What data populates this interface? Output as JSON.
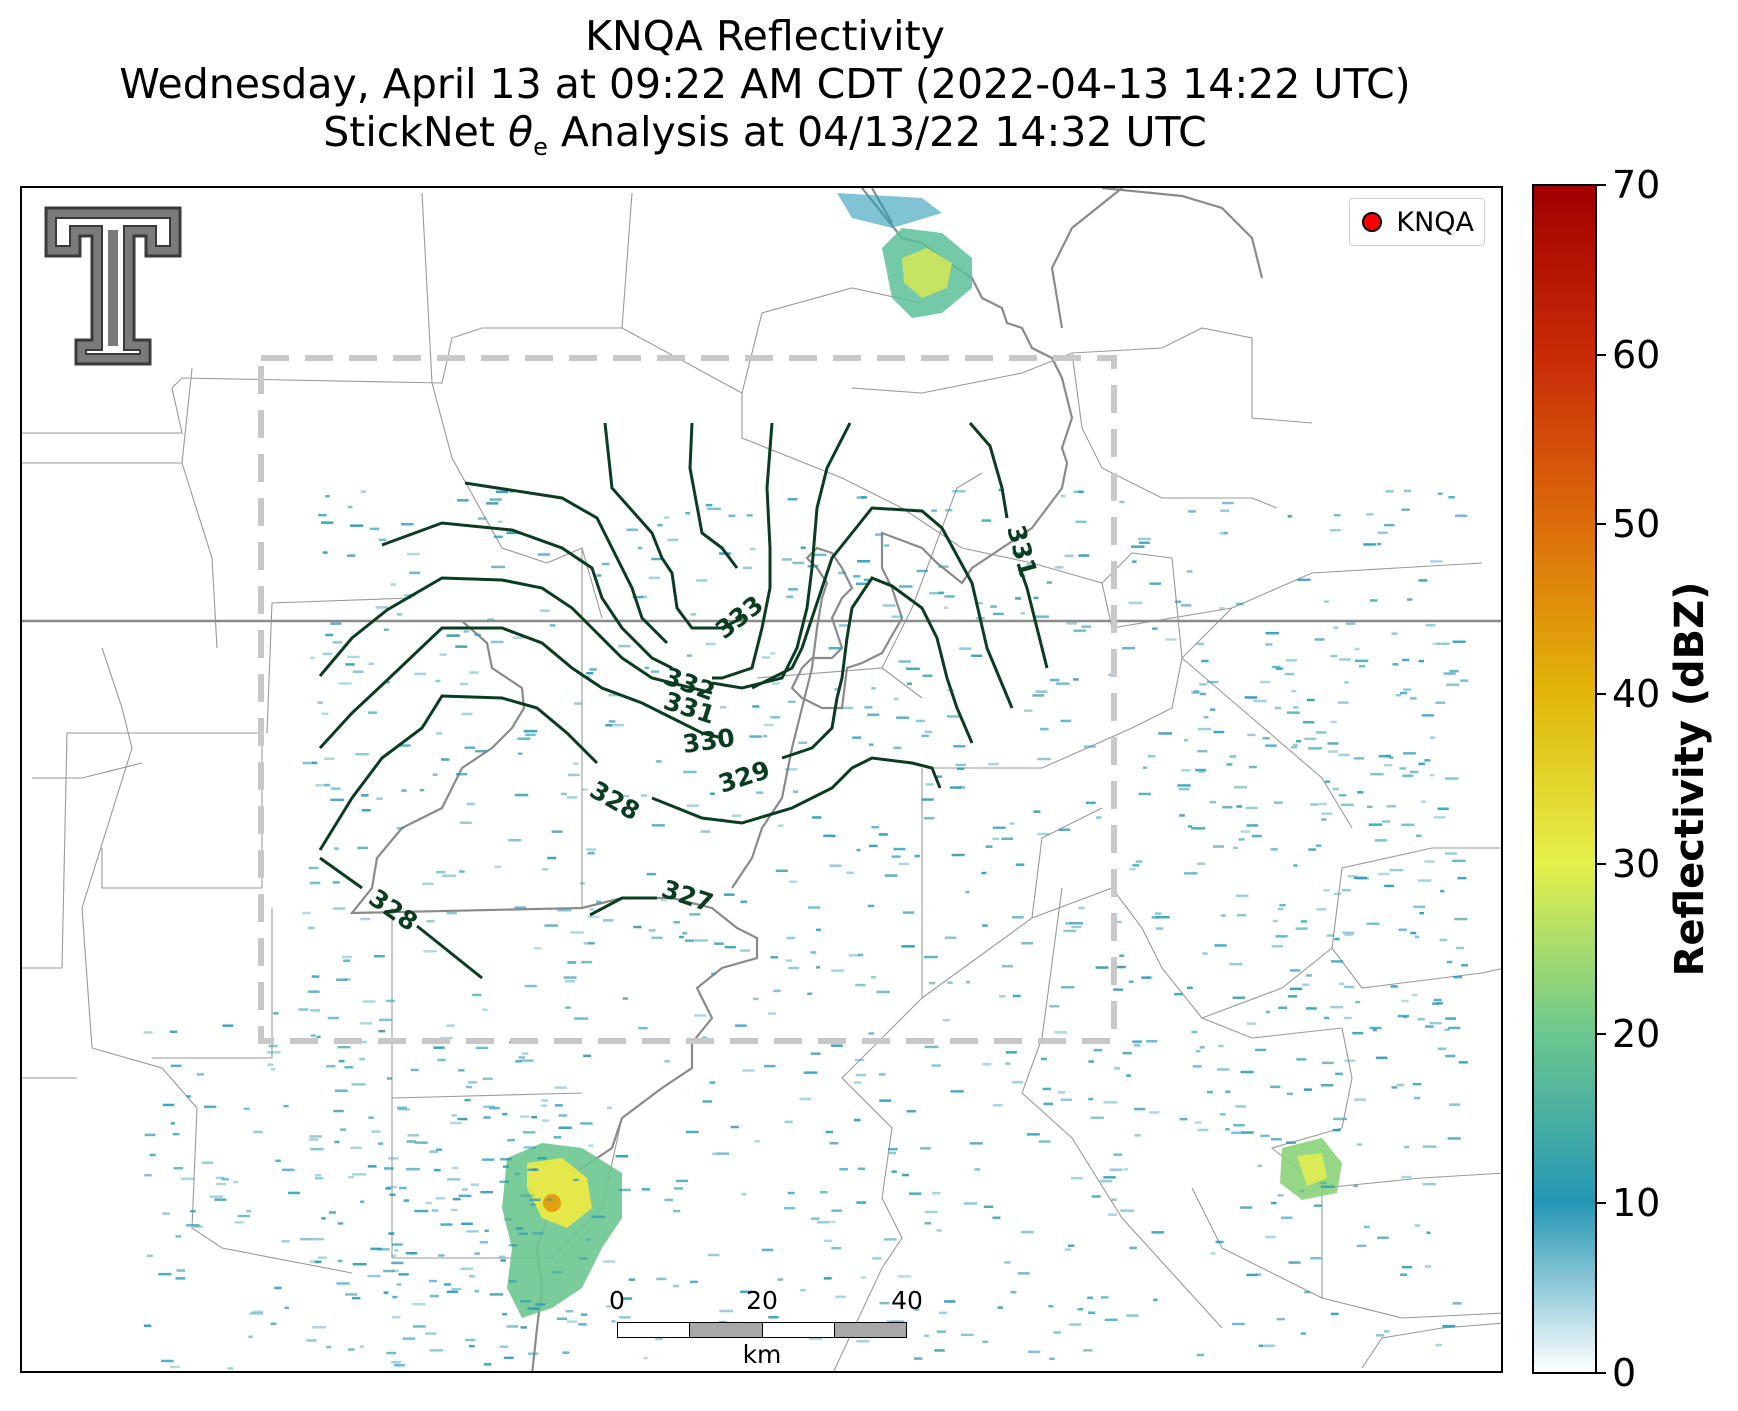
{
  "header": {
    "title": "KNQA Reflectivity",
    "subtitle": "Wednesday, April 13 at 09:22 AM CDT (2022-04-13 14:22 UTC)",
    "analysis_prefix": "StickNet ",
    "analysis_symbol": "θ",
    "analysis_subscript": "e",
    "analysis_suffix": " Analysis at 04/13/22 14:32 UTC"
  },
  "legend": {
    "label": "KNQA",
    "marker_color": "#ff0000"
  },
  "colorbar": {
    "title": "Reflectivity (dBZ)",
    "ticks": [
      "0",
      "10",
      "20",
      "30",
      "40",
      "50",
      "60",
      "70"
    ],
    "colors": [
      "#ffffff",
      "#2596b4",
      "#6cc78f",
      "#e4f04b",
      "#e2b70a",
      "#dc6c0b",
      "#c82b07",
      "#a00000"
    ]
  },
  "scalebar": {
    "labels": [
      "0",
      "20",
      "40"
    ],
    "unit": "km"
  },
  "contour_labels": [
    "333",
    "332",
    "331",
    "330",
    "329",
    "328",
    "327",
    "328",
    "331"
  ],
  "logo": {
    "icon": "double-t-logo-icon"
  }
}
